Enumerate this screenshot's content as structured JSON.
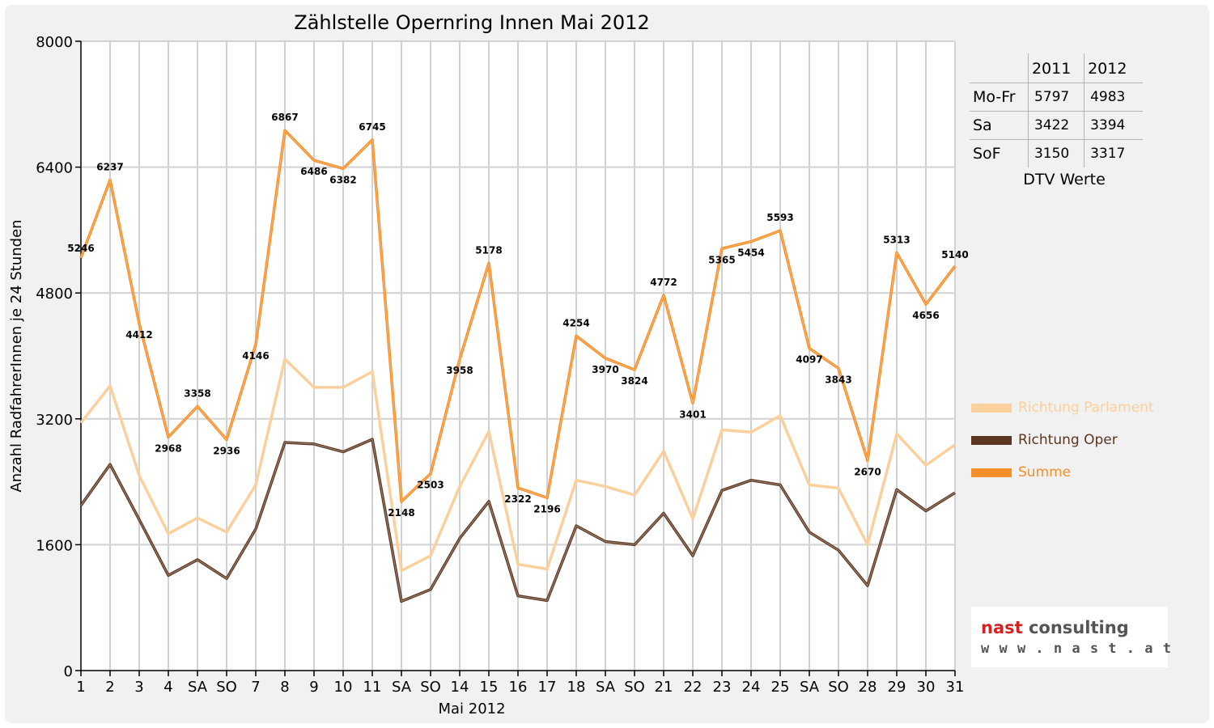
{
  "chart_data": {
    "type": "line",
    "title": "Zählstelle Opernring Innen Mai 2012",
    "xlabel": "Mai 2012",
    "ylabel": "Anzahl RadfahrerInnen je 24 Stunden",
    "ylim": [
      0,
      8000
    ],
    "yticks": [
      "0",
      "1600",
      "3200",
      "4800",
      "6400",
      "8000"
    ],
    "grid": true,
    "categories": [
      "1",
      "2",
      "3",
      "4",
      "SA",
      "SO",
      "7",
      "8",
      "9",
      "10",
      "11",
      "SA",
      "SO",
      "14",
      "15",
      "16",
      "17",
      "18",
      "SA",
      "SO",
      "21",
      "22",
      "23",
      "24",
      "25",
      "SA",
      "SO",
      "28",
      "29",
      "30",
      "31"
    ],
    "highlight_categories": [
      0,
      5,
      12,
      16,
      19,
      26,
      27
    ],
    "highlight_color": "#ee0000",
    "series": [
      {
        "name": "Richtung Parlament",
        "color": "#fbd09c",
        "values": [
          3150,
          3620,
          2480,
          1740,
          1940,
          1760,
          2360,
          3960,
          3600,
          3600,
          3800,
          1270,
          1460,
          2340,
          3040,
          1350,
          1290,
          2420,
          2340,
          2230,
          2790,
          1930,
          3060,
          3030,
          3240,
          2360,
          2320,
          1600,
          3010,
          2610,
          2870
        ]
      },
      {
        "name": "Richtung Oper",
        "color": "#5c3620",
        "values": [
          2100,
          2620,
          1920,
          1210,
          1410,
          1170,
          1800,
          2900,
          2880,
          2780,
          2940,
          880,
          1030,
          1680,
          2150,
          950,
          890,
          1840,
          1640,
          1600,
          2000,
          1460,
          2290,
          2420,
          2360,
          1760,
          1530,
          1080,
          2300,
          2030,
          2260
        ]
      },
      {
        "name": "Summe",
        "color": "#f78f2b",
        "values": [
          5246,
          6237,
          4412,
          2968,
          3358,
          2936,
          4146,
          6867,
          6486,
          6382,
          6745,
          2148,
          2503,
          3958,
          5178,
          2322,
          2196,
          4254,
          3970,
          3824,
          4772,
          3401,
          5365,
          5454,
          5593,
          4097,
          3843,
          2670,
          5313,
          4656,
          5140
        ],
        "data_labels": [
          "5246",
          "6237",
          "4412",
          "2968",
          "3358",
          "2936",
          "4146",
          "6867",
          "6486",
          "6382",
          "6745",
          "2148",
          "2503",
          "3958",
          "5178",
          "2322",
          "2196",
          "4254",
          "3970",
          "3824",
          "4772",
          "3401",
          "5365",
          "5454",
          "5593",
          "4097",
          "3843",
          "2670",
          "5313",
          "4656",
          "5140"
        ]
      }
    ]
  },
  "dtv": {
    "headers": [
      "",
      "2011",
      "2012"
    ],
    "rows": [
      {
        "label": "Mo-Fr",
        "y2011": "5797",
        "y2012": "4983"
      },
      {
        "label": "Sa",
        "y2011": "3422",
        "y2012": "3394"
      },
      {
        "label": "SoF",
        "y2011": "3150",
        "y2012": "3317"
      }
    ],
    "caption": "DTV Werte"
  },
  "logo": {
    "name_prefix": "nast",
    "name_suffix": " consulting",
    "url": "www.nast.at",
    "accent_color": "#d42222"
  }
}
